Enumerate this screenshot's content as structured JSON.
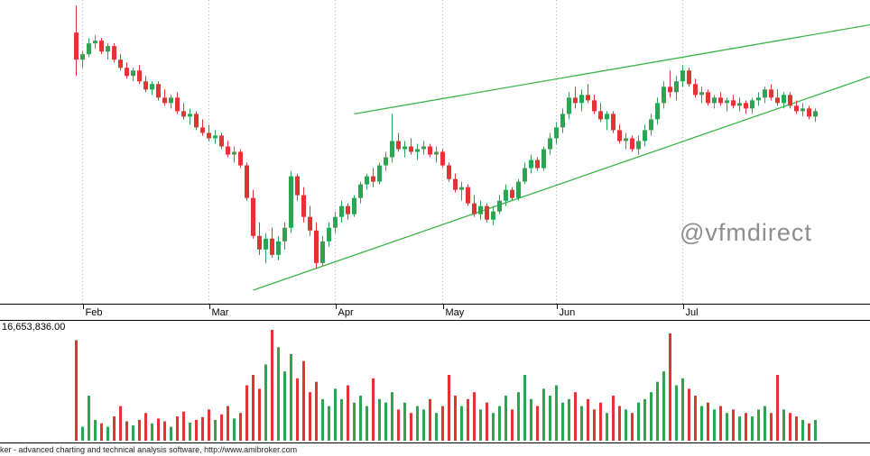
{
  "watermark": "@vfmdirect",
  "footer": {
    "credit": "ker - advanced charting and technical analysis software, http://www.amibroker.com"
  },
  "colors": {
    "up": "#2ea352",
    "down": "#e23434",
    "trendline": "#3cb349",
    "gridline": "#b5b5b5"
  },
  "chart_data": {
    "type": "candlestick",
    "title": "",
    "legend_position": "none",
    "grid": "vertical-dotted-month-lines",
    "x_axis": {
      "months": [
        {
          "label": "Feb",
          "index": 1
        },
        {
          "label": "Mar",
          "index": 21
        },
        {
          "label": "Apr",
          "index": 41
        },
        {
          "label": "May",
          "index": 58
        },
        {
          "label": "Jun",
          "index": 76
        },
        {
          "label": "Jul",
          "index": 96
        }
      ]
    },
    "price": {
      "ylim": [
        0,
        112
      ],
      "ohlc": [
        [
          100,
          110,
          84,
          90
        ],
        [
          90,
          93,
          87,
          92
        ],
        [
          92,
          98,
          91,
          96
        ],
        [
          96,
          99,
          94,
          97
        ],
        [
          97,
          98,
          92,
          93
        ],
        [
          93,
          96,
          90,
          95
        ],
        [
          95,
          96,
          89,
          90
        ],
        [
          90,
          92,
          86,
          87
        ],
        [
          87,
          89,
          83,
          84
        ],
        [
          84,
          87,
          82,
          86
        ],
        [
          86,
          88,
          81,
          82
        ],
        [
          82,
          84,
          78,
          79
        ],
        [
          79,
          82,
          77,
          81
        ],
        [
          81,
          82,
          75,
          76
        ],
        [
          76,
          79,
          73,
          74
        ],
        [
          74,
          77,
          72,
          76
        ],
        [
          76,
          78,
          70,
          71
        ],
        [
          71,
          74,
          68,
          69
        ],
        [
          69,
          72,
          66,
          70
        ],
        [
          70,
          71,
          64,
          65
        ],
        [
          65,
          68,
          62,
          63
        ],
        [
          63,
          66,
          60,
          61
        ],
        [
          61,
          64,
          59,
          62
        ],
        [
          62,
          63,
          57,
          58
        ],
        [
          58,
          60,
          54,
          55
        ],
        [
          55,
          58,
          52,
          56
        ],
        [
          56,
          57,
          50,
          51
        ],
        [
          51,
          52,
          38,
          39
        ],
        [
          39,
          42,
          24,
          25
        ],
        [
          25,
          30,
          18,
          20
        ],
        [
          20,
          26,
          15,
          24
        ],
        [
          24,
          28,
          17,
          18
        ],
        [
          18,
          25,
          16,
          23
        ],
        [
          23,
          30,
          20,
          28
        ],
        [
          28,
          49,
          26,
          47
        ],
        [
          47,
          48,
          38,
          40
        ],
        [
          40,
          43,
          30,
          32
        ],
        [
          32,
          36,
          25,
          27
        ],
        [
          27,
          30,
          13,
          15
        ],
        [
          15,
          25,
          14,
          23
        ],
        [
          23,
          30,
          21,
          28
        ],
        [
          28,
          34,
          26,
          32
        ],
        [
          32,
          38,
          30,
          36
        ],
        [
          36,
          37,
          31,
          33
        ],
        [
          33,
          40,
          32,
          39
        ],
        [
          39,
          45,
          37,
          44
        ],
        [
          44,
          48,
          42,
          47
        ],
        [
          47,
          50,
          43,
          45
        ],
        [
          45,
          52,
          44,
          51
        ],
        [
          51,
          56,
          49,
          54
        ],
        [
          54,
          70,
          52,
          60
        ],
        [
          60,
          63,
          56,
          57
        ],
        [
          57,
          60,
          54,
          58
        ],
        [
          58,
          61,
          55,
          56
        ],
        [
          56,
          59,
          53,
          57
        ],
        [
          57,
          60,
          55,
          58
        ],
        [
          58,
          59,
          54,
          55
        ],
        [
          55,
          58,
          52,
          56
        ],
        [
          56,
          57,
          50,
          51
        ],
        [
          51,
          52,
          45,
          46
        ],
        [
          46,
          48,
          41,
          42
        ],
        [
          42,
          45,
          38,
          43
        ],
        [
          43,
          44,
          36,
          37
        ],
        [
          37,
          40,
          32,
          33
        ],
        [
          33,
          38,
          31,
          36
        ],
        [
          36,
          37,
          30,
          31
        ],
        [
          31,
          36,
          29,
          34
        ],
        [
          34,
          40,
          33,
          38
        ],
        [
          38,
          44,
          36,
          42
        ],
        [
          42,
          43,
          38,
          39
        ],
        [
          39,
          46,
          38,
          45
        ],
        [
          45,
          52,
          44,
          50
        ],
        [
          50,
          55,
          48,
          53
        ],
        [
          53,
          54,
          49,
          50
        ],
        [
          50,
          58,
          49,
          57
        ],
        [
          57,
          63,
          55,
          61
        ],
        [
          61,
          67,
          59,
          65
        ],
        [
          65,
          72,
          63,
          70
        ],
        [
          70,
          78,
          68,
          76
        ],
        [
          76,
          80,
          72,
          74
        ],
        [
          74,
          79,
          71,
          77
        ],
        [
          77,
          81,
          74,
          75
        ],
        [
          75,
          77,
          70,
          71
        ],
        [
          71,
          74,
          67,
          68
        ],
        [
          68,
          71,
          64,
          70
        ],
        [
          70,
          71,
          63,
          64
        ],
        [
          64,
          66,
          59,
          60
        ],
        [
          60,
          63,
          57,
          61
        ],
        [
          61,
          62,
          56,
          57
        ],
        [
          57,
          62,
          55,
          60
        ],
        [
          60,
          66,
          58,
          64
        ],
        [
          64,
          70,
          62,
          68
        ],
        [
          68,
          76,
          66,
          74
        ],
        [
          74,
          82,
          72,
          80
        ],
        [
          80,
          86,
          76,
          78
        ],
        [
          78,
          84,
          75,
          82
        ],
        [
          82,
          88,
          80,
          86
        ],
        [
          86,
          87,
          80,
          81
        ],
        [
          81,
          83,
          76,
          77
        ],
        [
          77,
          80,
          74,
          78
        ],
        [
          78,
          79,
          73,
          74
        ],
        [
          74,
          77,
          72,
          76
        ],
        [
          76,
          78,
          73,
          74
        ],
        [
          74,
          76,
          71,
          75
        ],
        [
          75,
          77,
          72,
          73
        ],
        [
          73,
          76,
          71,
          74
        ],
        [
          74,
          75,
          70,
          72
        ],
        [
          72,
          76,
          70,
          75
        ],
        [
          75,
          78,
          73,
          76
        ],
        [
          76,
          80,
          74,
          79
        ],
        [
          79,
          81,
          75,
          76
        ],
        [
          76,
          79,
          73,
          74
        ],
        [
          74,
          78,
          72,
          77
        ],
        [
          77,
          78,
          72,
          73
        ],
        [
          73,
          75,
          70,
          71
        ],
        [
          71,
          74,
          69,
          72
        ],
        [
          72,
          73,
          68,
          69
        ],
        [
          69,
          72,
          67,
          71
        ]
      ]
    },
    "volume": {
      "max": 16.653836,
      "max_label": "16,653,836.00",
      "unit": "millions",
      "values": [
        14.5,
        2.0,
        6.5,
        3.0,
        2.5,
        2.0,
        3.5,
        5.0,
        2.8,
        2.2,
        3.0,
        4.0,
        2.5,
        3.2,
        2.8,
        2.0,
        3.5,
        4.2,
        2.6,
        3.0,
        3.4,
        4.5,
        3.0,
        3.8,
        5.0,
        3.2,
        4.0,
        8.0,
        9.5,
        7.5,
        11.0,
        16.0,
        13.5,
        10.0,
        12.5,
        9.0,
        11.5,
        7.0,
        8.5,
        6.0,
        5.0,
        7.5,
        6.0,
        8.0,
        5.5,
        6.5,
        5.0,
        9.0,
        6.0,
        5.5,
        7.0,
        4.5,
        5.5,
        4.0,
        5.0,
        4.5,
        6.0,
        4.0,
        5.0,
        9.5,
        6.5,
        5.0,
        6.0,
        7.0,
        4.5,
        5.5,
        4.0,
        5.0,
        6.5,
        4.5,
        7.0,
        9.5,
        6.0,
        5.0,
        7.5,
        6.5,
        8.0,
        5.5,
        6.0,
        7.0,
        5.0,
        6.0,
        4.5,
        5.5,
        4.0,
        6.5,
        5.0,
        4.5,
        4.0,
        5.5,
        6.0,
        7.0,
        8.5,
        10.0,
        15.5,
        8.0,
        9.0,
        7.5,
        6.5,
        5.0,
        5.5,
        4.5,
        5.0,
        4.0,
        4.5,
        3.5,
        4.0,
        3.5,
        4.5,
        5.0,
        4.0,
        9.5,
        4.5,
        4.0,
        3.5,
        3.0,
        2.5,
        3.0
      ]
    },
    "trendlines": [
      {
        "name": "upper-rising-trendline",
        "i1": 44,
        "p1": 70,
        "i2": 126,
        "p2": 103
      },
      {
        "name": "lower-rising-trendline",
        "i1": 28,
        "p1": 5,
        "i2": 126,
        "p2": 84
      }
    ],
    "annotations": {
      "watermark": "@vfmdirect"
    }
  }
}
